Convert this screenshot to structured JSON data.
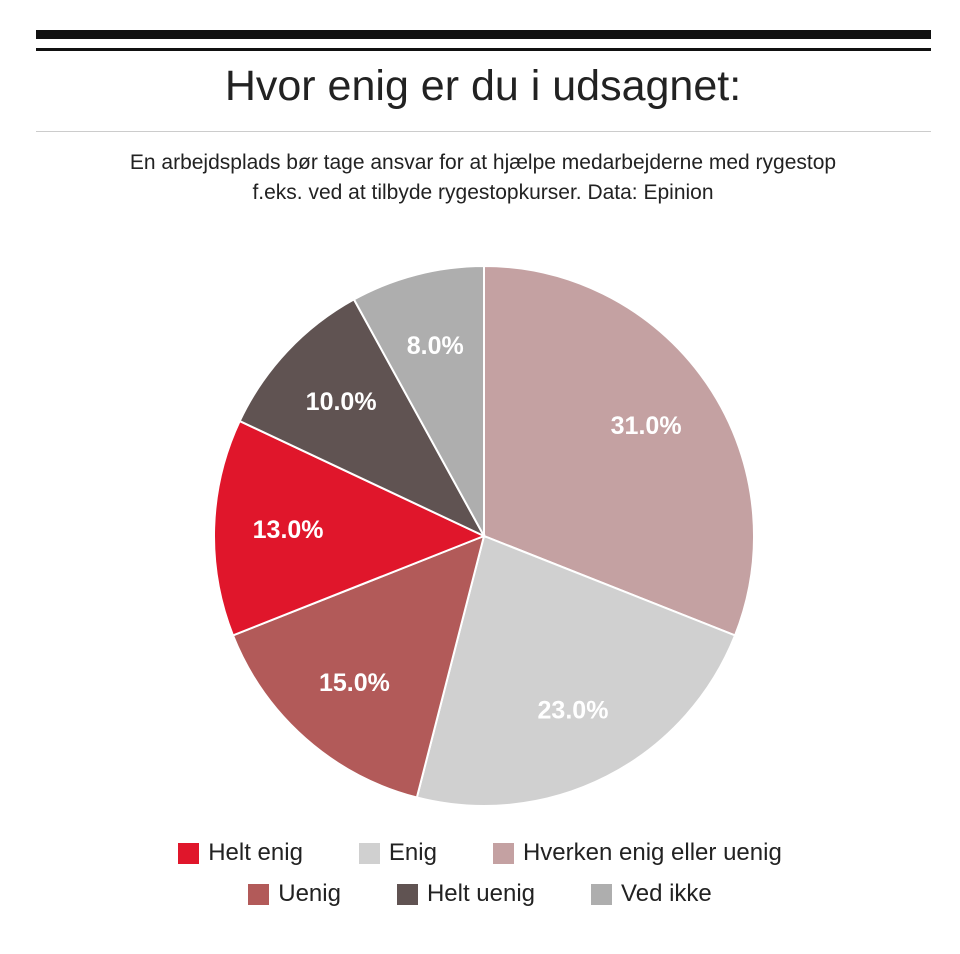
{
  "header": {
    "title": "Hvor enig er du i udsagnet:",
    "subtitle_line1": "En arbejdsplads bør tage ansvar for at hjælpe medarbejderne med rygestop",
    "subtitle_line2": "f.eks. ved at tilbyde rygestopkurser. Data: Epinion"
  },
  "chart_data": {
    "type": "pie",
    "title": "Hvor enig er du i udsagnet:",
    "subtitle": "En arbejdsplads bør tage ansvar for at hjælpe medarbejderne med rygestop f.eks. ved at tilbyde rygestopkurser. Data: Epinion",
    "start": "12 o'clock, clockwise",
    "legend_position": "bottom",
    "slices": [
      {
        "label": "Hverken enig eller uenig",
        "value": 31.0,
        "display": "31.0%",
        "color": "#c4a1a2"
      },
      {
        "label": "Enig",
        "value": 23.0,
        "display": "23.0%",
        "color": "#d0d0d0"
      },
      {
        "label": "Uenig",
        "value": 15.0,
        "display": "15.0%",
        "color": "#b25a59"
      },
      {
        "label": "Helt enig",
        "value": 13.0,
        "display": "13.0%",
        "color": "#e0162b"
      },
      {
        "label": "Helt uenig",
        "value": 10.0,
        "display": "10.0%",
        "color": "#605352"
      },
      {
        "label": "Ved ikke",
        "value": 8.0,
        "display": "8.0%",
        "color": "#aeaeae"
      }
    ],
    "legend": [
      [
        {
          "label": "Helt enig",
          "color": "#e0162b"
        },
        {
          "label": "Enig",
          "color": "#d0d0d0"
        },
        {
          "label": "Hverken enig eller uenig",
          "color": "#c4a1a2"
        }
      ],
      [
        {
          "label": "Uenig",
          "color": "#b25a59"
        },
        {
          "label": "Helt uenig",
          "color": "#605352"
        },
        {
          "label": "Ved ikke",
          "color": "#aeaeae"
        }
      ]
    ]
  }
}
